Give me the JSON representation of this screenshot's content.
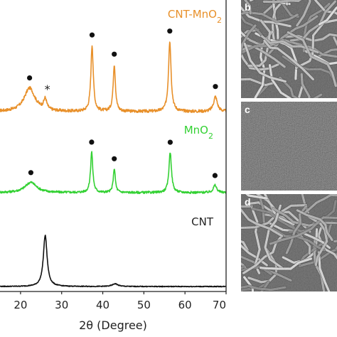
{
  "chart_data": {
    "type": "line",
    "xlabel": "2θ (Degree)",
    "xlim": [
      15,
      70
    ],
    "xticks": [
      20,
      30,
      40,
      50,
      60,
      70
    ],
    "grid": false,
    "peak_dot_marker": "●",
    "impurity_marker": "*",
    "series": [
      {
        "name": "CNT-MnO",
        "name_sub": "2",
        "color": "#e8902a",
        "baseline": 0.0,
        "noise": 0.035,
        "peaks": [
          {
            "x": 22.2,
            "h": 0.55,
            "w": 1.6,
            "marker": "dot"
          },
          {
            "x": 26.0,
            "h": 0.25,
            "w": 0.45,
            "marker": "star"
          },
          {
            "x": 37.4,
            "h": 1.55,
            "w": 0.35,
            "marker": "dot"
          },
          {
            "x": 42.8,
            "h": 1.1,
            "w": 0.33,
            "marker": "dot"
          },
          {
            "x": 56.3,
            "h": 1.65,
            "w": 0.38,
            "marker": "dot"
          },
          {
            "x": 67.4,
            "h": 0.35,
            "w": 0.55,
            "marker": "dot"
          }
        ]
      },
      {
        "name": "MnO",
        "name_sub": "2",
        "color": "#33d133",
        "baseline": 0.0,
        "noise": 0.03,
        "peaks": [
          {
            "x": 22.5,
            "h": 0.28,
            "w": 1.7,
            "marker": "dot"
          },
          {
            "x": 37.3,
            "h": 1.1,
            "w": 0.33,
            "marker": "dot"
          },
          {
            "x": 42.8,
            "h": 0.65,
            "w": 0.3,
            "marker": "dot"
          },
          {
            "x": 56.4,
            "h": 1.1,
            "w": 0.37,
            "marker": "dot"
          },
          {
            "x": 67.3,
            "h": 0.2,
            "w": 0.5,
            "marker": "dot"
          }
        ]
      },
      {
        "name": "CNT",
        "name_sub": "",
        "color": "#111111",
        "baseline": 0.0,
        "noise": 0.012,
        "peaks": [
          {
            "x": 26.0,
            "h": 1.5,
            "w": 0.55,
            "marker": "none"
          },
          {
            "x": 43.0,
            "h": 0.08,
            "w": 0.8,
            "marker": "none"
          }
        ]
      }
    ]
  },
  "panels": [
    {
      "letter": "b",
      "style": "tubes"
    },
    {
      "letter": "c",
      "style": "smooth"
    },
    {
      "letter": "d",
      "style": "tubes"
    }
  ]
}
